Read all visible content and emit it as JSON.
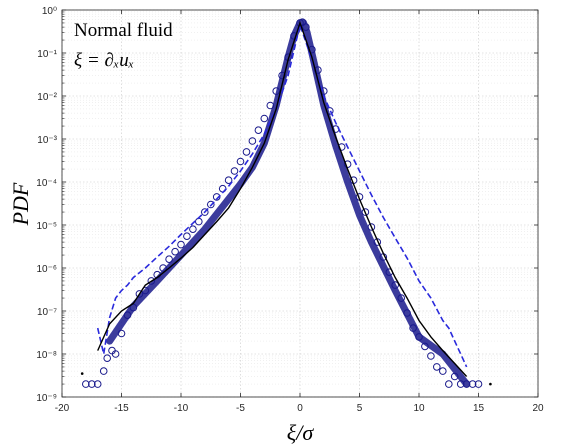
{
  "chart_data": {
    "type": "scatter",
    "xlabel": "ξ/σ",
    "ylabel": "PDF",
    "xlim": [
      -20,
      20
    ],
    "ylim": [
      1e-09,
      1
    ],
    "y_scale": "log",
    "grid": true,
    "x_ticks": [
      "-20",
      "-15",
      "-10",
      "-5",
      "0",
      "5",
      "10",
      "15",
      "20"
    ],
    "y_ticks": [
      "10⁻⁹",
      "10⁻⁸",
      "10⁻⁷",
      "10⁻⁶",
      "10⁻⁵",
      "10⁻⁴",
      "10⁻³",
      "10⁻²",
      "10⁻¹",
      "10⁰"
    ],
    "annotations": [
      "Normal  fluid",
      "ξ = ∂ₓuₓ"
    ],
    "colors": {
      "markers": "#1a1a8c",
      "blue_dash": "#2a2adc",
      "black": "#000000"
    },
    "core_curve": {
      "x": [
        -16,
        -14,
        -12,
        -10,
        -8,
        -6,
        -5,
        -4,
        -3,
        -2,
        -1,
        -0.5,
        0,
        0.3,
        0.6,
        1,
        2,
        3,
        4,
        5,
        6,
        8,
        10,
        12,
        14
      ],
      "y": [
        2e-08,
        1.3e-07,
        5e-07,
        2e-06,
        8e-06,
        4e-05,
        9e-05,
        0.00022,
        0.0008,
        0.006,
        0.08,
        0.25,
        0.5,
        0.5,
        0.3,
        0.1,
        0.006,
        0.0007,
        0.0001,
        1.7e-05,
        4e-06,
        3e-07,
        2.5e-08,
        1e-08,
        2e-09
      ]
    },
    "series": [
      {
        "style": "circles",
        "x": [
          -18,
          -17.5,
          -17,
          -16.5,
          -16.2,
          -15.8,
          -15.5,
          -15,
          -14.5,
          -14,
          -13.5,
          -13,
          -12.5,
          -12,
          -11.5,
          -11,
          -10.5,
          -10,
          -9.5,
          -9,
          -8.5,
          -8,
          -7.5,
          -7,
          -6.5,
          -6,
          -5.5,
          -5,
          -4.5,
          -4,
          -3.5,
          -3,
          -2.5,
          -2,
          -1.5,
          -1,
          -0.5,
          0,
          0.2,
          0.5,
          1,
          1.5,
          2,
          2.5,
          3,
          3.5,
          4,
          4.5,
          5,
          5.5,
          6,
          6.5,
          7,
          7.5,
          8,
          8.5,
          9,
          9.5,
          10,
          10.5,
          11,
          11.5,
          12,
          12.5,
          13,
          13.5,
          14,
          14.5,
          15
        ],
        "y": [
          2e-09,
          2e-09,
          2e-09,
          4e-09,
          8e-09,
          1.2e-08,
          1e-08,
          3e-08,
          8e-08,
          1.2e-07,
          2.5e-07,
          3e-07,
          5e-07,
          7e-07,
          1e-06,
          1.6e-06,
          2.4e-06,
          3.5e-06,
          5.5e-06,
          8e-06,
          1.2e-05,
          2e-05,
          3e-05,
          4.5e-05,
          7e-05,
          0.00011,
          0.00018,
          0.0003,
          0.0005,
          0.0009,
          0.0016,
          0.003,
          0.006,
          0.013,
          0.03,
          0.08,
          0.25,
          0.5,
          0.52,
          0.4,
          0.12,
          0.04,
          0.013,
          0.0045,
          0.0017,
          0.00065,
          0.00026,
          0.00011,
          4.5e-05,
          2e-05,
          9e-06,
          4e-06,
          1.8e-06,
          8e-07,
          4e-07,
          2e-07,
          9e-08,
          4e-08,
          2.5e-08,
          1.5e-08,
          9e-09,
          5e-09,
          4e-09,
          2e-09,
          3e-09,
          2e-09,
          2e-09,
          2e-09,
          2e-09
        ]
      },
      {
        "style": "dashed",
        "x": [
          -17,
          -16.5,
          -16,
          -15.5,
          -15,
          -14.5,
          -14,
          -13,
          -12,
          -11,
          -10,
          -9,
          -8,
          -7,
          -6,
          -5,
          -4,
          -3,
          -2,
          -1,
          0,
          1,
          2,
          3,
          4,
          5,
          6,
          7,
          8,
          9,
          10,
          11,
          12,
          12.5,
          13,
          13.5,
          14
        ],
        "y": [
          4e-08,
          1e-08,
          7e-08,
          2e-07,
          3e-07,
          4e-07,
          6e-07,
          1e-06,
          1.8e-06,
          3.2e-06,
          6e-06,
          1.1e-05,
          2e-05,
          4e-05,
          8e-05,
          0.00018,
          0.00045,
          0.0013,
          0.005,
          0.03,
          0.45,
          0.07,
          0.01,
          0.0024,
          0.00065,
          0.00018,
          5e-05,
          1.5e-05,
          5e-06,
          1.7e-06,
          5e-07,
          2e-07,
          6e-08,
          4e-08,
          2e-08,
          1e-08,
          5e-09
        ]
      },
      {
        "style": "solid",
        "x": [
          -17,
          -16,
          -15,
          -14,
          -13,
          -12,
          -11,
          -10,
          -9,
          -8,
          -7,
          -6,
          -5,
          -4,
          -3,
          -2,
          -1,
          0,
          1,
          2,
          3,
          4,
          5,
          6,
          7,
          8,
          9,
          10,
          11,
          12,
          13,
          14
        ],
        "y": [
          1.2e-08,
          5e-08,
          1e-07,
          1.5e-07,
          4e-07,
          6e-07,
          1e-06,
          1.7e-06,
          3e-06,
          6e-06,
          1.2e-05,
          2.5e-05,
          7e-05,
          0.00022,
          0.0008,
          0.005,
          0.07,
          0.5,
          0.08,
          0.007,
          0.0011,
          0.0002,
          4e-05,
          9e-06,
          2.2e-06,
          6e-07,
          2e-07,
          6e-08,
          2.5e-08,
          1.2e-08,
          6e-09,
          3e-09
        ]
      }
    ],
    "end_marks": [
      {
        "x": -18.3,
        "y": 3.5e-09
      },
      {
        "x": 16.0,
        "y": 2e-09
      }
    ]
  }
}
